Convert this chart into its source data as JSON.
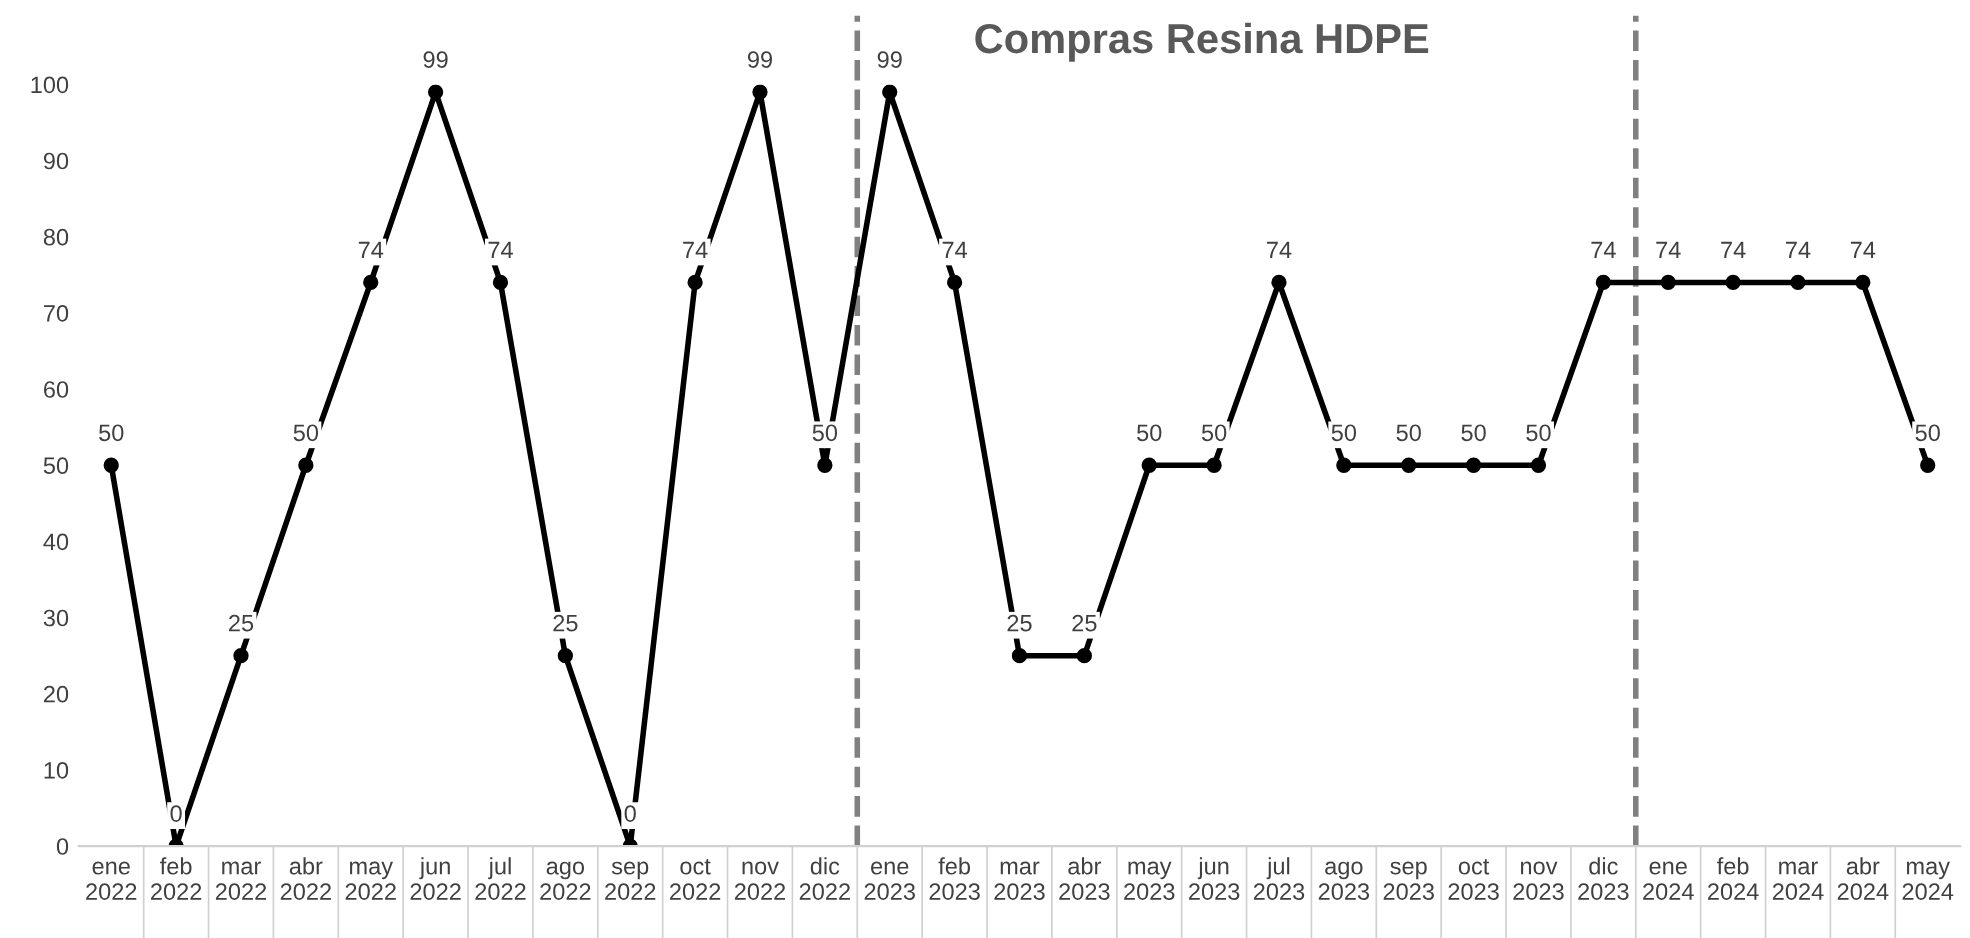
{
  "chart_data": {
    "type": "line",
    "title": "Compras Resina HDPE",
    "categories": [
      "ene\n2022",
      "feb\n2022",
      "mar\n2022",
      "abr\n2022",
      "may\n2022",
      "jun\n2022",
      "jul\n2022",
      "ago\n2022",
      "sep\n2022",
      "oct\n2022",
      "nov\n2022",
      "dic\n2022",
      "ene\n2023",
      "feb\n2023",
      "mar\n2023",
      "abr\n2023",
      "may\n2023",
      "jun\n2023",
      "jul\n2023",
      "ago\n2023",
      "sep\n2023",
      "oct\n2023",
      "nov\n2023",
      "dic\n2023",
      "ene\n2024",
      "feb\n2024",
      "mar\n2024",
      "abr\n2024",
      "may\n2024"
    ],
    "series": [
      {
        "color": "#000000",
        "values": [
          50,
          0,
          25,
          50,
          74,
          99,
          74,
          25,
          0,
          74,
          99,
          50,
          99,
          74,
          25,
          25,
          50,
          50,
          74,
          50,
          50,
          50,
          50,
          74,
          74,
          74,
          74,
          74,
          50
        ]
      }
    ],
    "ylim": [
      0,
      100
    ],
    "yticks": [
      0,
      10,
      20,
      30,
      40,
      50,
      60,
      70,
      80,
      90,
      100
    ],
    "grid": false,
    "legend": false,
    "marker": "circle",
    "line_style": "solid",
    "data_labels": true
  }
}
